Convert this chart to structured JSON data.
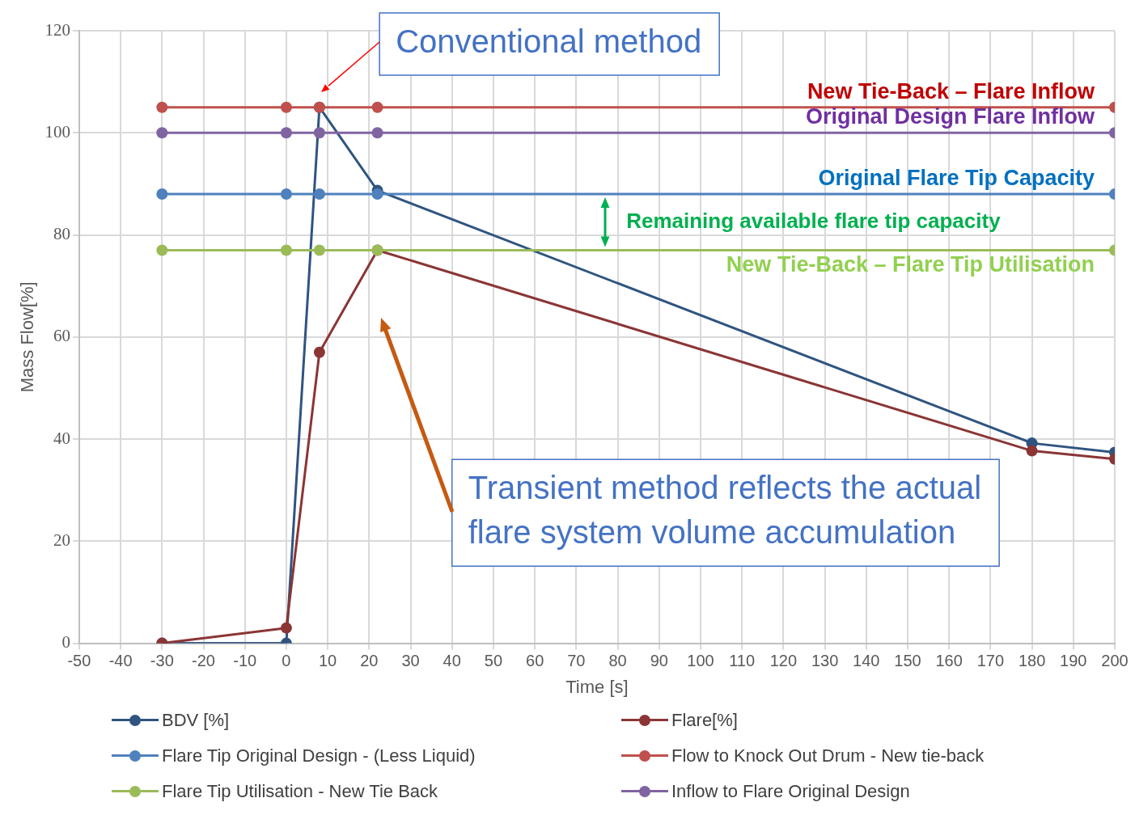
{
  "chart_data": {
    "type": "line",
    "xlabel": "Time [s]",
    "ylabel": "Mass Flow[%]",
    "xlim": [
      -50,
      200
    ],
    "xticks": [
      -50,
      -40,
      -30,
      -20,
      -10,
      0,
      10,
      20,
      30,
      40,
      50,
      60,
      70,
      80,
      90,
      100,
      110,
      120,
      130,
      140,
      150,
      160,
      170,
      180,
      190,
      200
    ],
    "ylim": [
      0,
      120
    ],
    "yticks": [
      0,
      20,
      40,
      60,
      80,
      100,
      120
    ],
    "grid": true,
    "legend": "bottom",
    "marker": "circle",
    "line_style": "solid",
    "series": [
      {
        "name": "BDV [%]",
        "color": "#2f5480",
        "x": [
          -30,
          0,
          8,
          22,
          180,
          200
        ],
        "values": [
          0,
          0,
          105,
          88.7,
          39.2,
          37.4
        ]
      },
      {
        "name": "Flare[%]",
        "color": "#8b3535",
        "x": [
          -30,
          0,
          8,
          22,
          180,
          200
        ],
        "values": [
          0,
          3,
          57,
          77,
          37.7,
          36.1
        ]
      },
      {
        "name": "Flare Tip Original Design - (Less Liquid)",
        "color": "#4f81bd",
        "x": [
          -30,
          0,
          8,
          22,
          200
        ],
        "values": [
          88,
          88,
          88,
          88,
          88
        ]
      },
      {
        "name": "Flow to Knock Out Drum - New tie-back",
        "color": "#c0504d",
        "x": [
          -30,
          0,
          8,
          22,
          200
        ],
        "values": [
          105,
          105,
          105,
          105,
          105
        ]
      },
      {
        "name": "Flare Tip Utilisation - New Tie Back",
        "color": "#9bbb59",
        "x": [
          -30,
          0,
          8,
          22,
          200
        ],
        "values": [
          77,
          77,
          77,
          77,
          77
        ]
      },
      {
        "name": "Inflow to Flare Original Design",
        "color": "#8064a2",
        "x": [
          -30,
          0,
          8,
          22,
          200
        ],
        "values": [
          100,
          100,
          100,
          100,
          100
        ]
      }
    ],
    "annotations": [
      "Conventional method",
      "Transient method reflects the actual flare system volume accumulation",
      "New Tie-Back – Flare Inflow",
      "Original Design Flare Inflow",
      "Original Flare Tip Capacity",
      "Remaining available flare tip capacity",
      "New Tie-Back – Flare Tip Utilisation"
    ]
  }
}
